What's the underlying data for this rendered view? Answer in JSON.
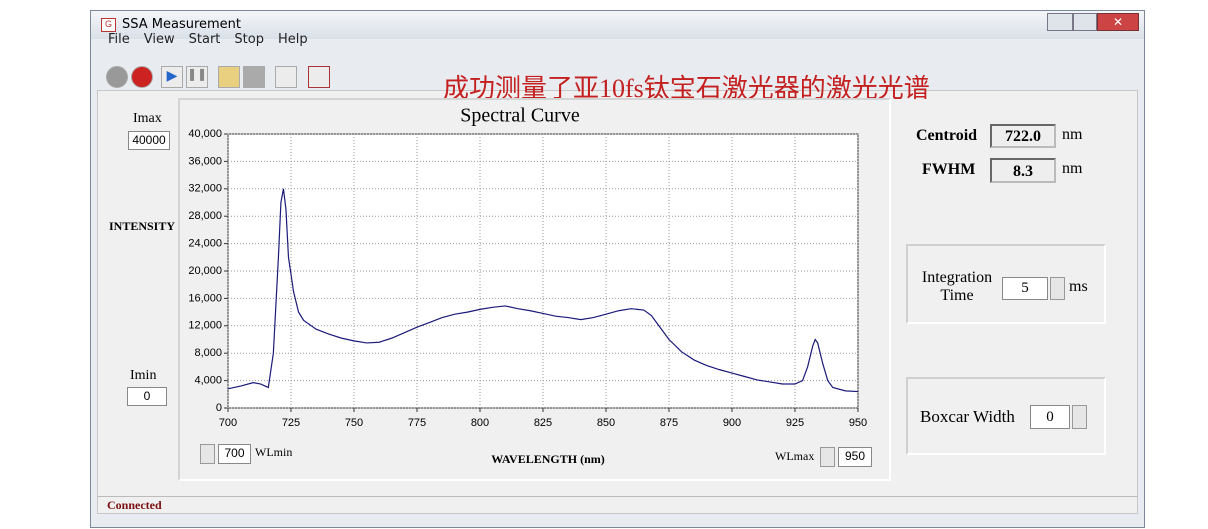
{
  "window": {
    "title": "SSA Measurement"
  },
  "menu": [
    "File",
    "View",
    "Start",
    "Stop",
    "Help"
  ],
  "annotation": "成功测量了亚10fs钛宝石激光器的激光光谱",
  "controls": {
    "imax_label": "Imax",
    "imax": 40000,
    "imin_label": "Imin",
    "imin": 0,
    "wlmin_label": "WLmin",
    "wlmin": 700,
    "wlmax_label": "WLmax",
    "wlmax": 950,
    "centroid_label": "Centroid",
    "centroid": "722.0",
    "centroid_unit": "nm",
    "fwhm_label": "FWHM",
    "fwhm": "8.3",
    "fwhm_unit": "nm",
    "integration_label": "Integration Time",
    "integration": 5,
    "integration_unit": "ms",
    "boxcar_label": "Boxcar Width",
    "boxcar": 0
  },
  "status": "Connected",
  "chart_data": {
    "type": "line",
    "title": "Spectral Curve",
    "x_label": "WAVELENGTH (nm)",
    "y_label": "INTENSITY",
    "color": "#1a1a7a",
    "grid": true,
    "x": [
      700,
      705,
      710,
      713,
      716,
      718,
      720,
      721,
      722,
      723,
      724,
      726,
      728,
      730,
      735,
      740,
      745,
      750,
      755,
      760,
      765,
      770,
      775,
      780,
      785,
      790,
      795,
      800,
      805,
      810,
      815,
      820,
      825,
      830,
      835,
      840,
      845,
      850,
      855,
      860,
      865,
      868,
      870,
      875,
      880,
      885,
      890,
      895,
      900,
      905,
      910,
      915,
      920,
      925,
      928,
      930,
      932,
      933,
      934,
      936,
      938,
      940,
      945,
      950
    ],
    "values": [
      2800,
      3200,
      3700,
      3500,
      3000,
      8000,
      22000,
      30000,
      32000,
      29000,
      22000,
      17000,
      14000,
      12800,
      11500,
      10800,
      10200,
      9800,
      9500,
      9600,
      10200,
      11000,
      11800,
      12500,
      13200,
      13700,
      14000,
      14400,
      14700,
      14900,
      14500,
      14200,
      13800,
      13400,
      13200,
      12900,
      13200,
      13700,
      14200,
      14500,
      14300,
      13500,
      12500,
      10000,
      8200,
      7000,
      6200,
      5600,
      5100,
      4600,
      4100,
      3800,
      3500,
      3500,
      4000,
      6000,
      9000,
      10000,
      9500,
      6500,
      4000,
      3000,
      2500,
      2400
    ],
    "xlim": [
      700,
      950
    ],
    "xticks": [
      700,
      725,
      750,
      775,
      800,
      825,
      850,
      875,
      900,
      925,
      950
    ],
    "ylim": [
      0,
      40000
    ],
    "yticks": [
      0,
      {
        "value": 4000,
        "label": "4,000"
      },
      {
        "value": 8000,
        "label": "8,000"
      },
      {
        "value": 12000,
        "label": "12,000"
      },
      {
        "value": 16000,
        "label": "16,000"
      },
      {
        "value": 20000,
        "label": "20,000"
      },
      {
        "value": 24000,
        "label": "24,000"
      },
      {
        "value": 28000,
        "label": "28,000"
      },
      {
        "value": 32000,
        "label": "32,000"
      },
      {
        "value": 36000,
        "label": "36,000"
      },
      {
        "value": 40000,
        "label": "40,000"
      }
    ]
  }
}
